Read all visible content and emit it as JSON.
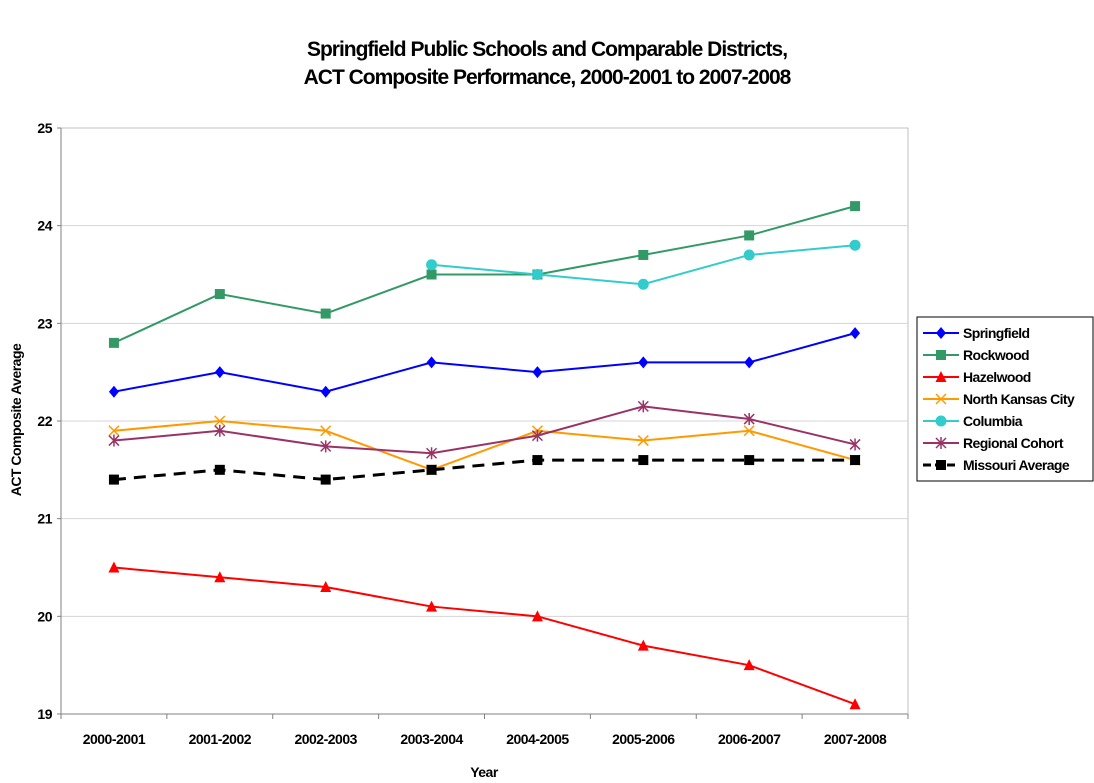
{
  "chart_data": {
    "type": "line",
    "title": [
      "Springfield Public Schools and Comparable Districts,",
      "ACT Composite Performance, 2000-2001 to 2007-2008"
    ],
    "xlabel": "Year",
    "ylabel": "ACT Composite Average",
    "ylim": [
      19,
      25
    ],
    "yticks": [
      "19",
      "20",
      "21",
      "22",
      "23",
      "24",
      "25"
    ],
    "grid": true,
    "legend_position": "right",
    "categories": [
      "2000-2001",
      "2001-2002",
      "2002-2003",
      "2003-2004",
      "2004-2005",
      "2005-2006",
      "2006-2007",
      "2007-2008"
    ],
    "series": [
      {
        "name": "Springfield",
        "color": "#0000ff",
        "marker": "diamond",
        "dash": false,
        "values": [
          22.3,
          22.5,
          22.3,
          22.6,
          22.5,
          22.6,
          22.6,
          22.9
        ]
      },
      {
        "name": "Rockwood",
        "color": "#339966",
        "marker": "square",
        "dash": false,
        "values": [
          22.8,
          23.3,
          23.1,
          23.5,
          23.5,
          23.7,
          23.9,
          24.2
        ]
      },
      {
        "name": "Hazelwood",
        "color": "#ff0000",
        "marker": "triangle",
        "dash": false,
        "values": [
          20.5,
          20.4,
          20.3,
          20.1,
          20.0,
          19.7,
          19.5,
          19.1
        ]
      },
      {
        "name": "North Kansas City",
        "color": "#ff9900",
        "marker": "x",
        "dash": false,
        "values": [
          21.9,
          22.0,
          21.9,
          21.5,
          21.9,
          21.8,
          21.9,
          21.6
        ]
      },
      {
        "name": "Columbia",
        "color": "#33cccc",
        "marker": "circle",
        "dash": false,
        "values": [
          null,
          null,
          null,
          23.6,
          23.5,
          23.4,
          23.7,
          23.8
        ]
      },
      {
        "name": "Regional Cohort",
        "color": "#993366",
        "marker": "star",
        "dash": false,
        "values": [
          21.8,
          21.9,
          21.74,
          21.67,
          21.85,
          22.15,
          22.02,
          21.76
        ]
      },
      {
        "name": "Missouri Average",
        "color": "#000000",
        "marker": "square",
        "dash": true,
        "values": [
          21.4,
          21.5,
          21.4,
          21.5,
          21.6,
          21.6,
          21.6,
          21.6
        ]
      }
    ]
  }
}
